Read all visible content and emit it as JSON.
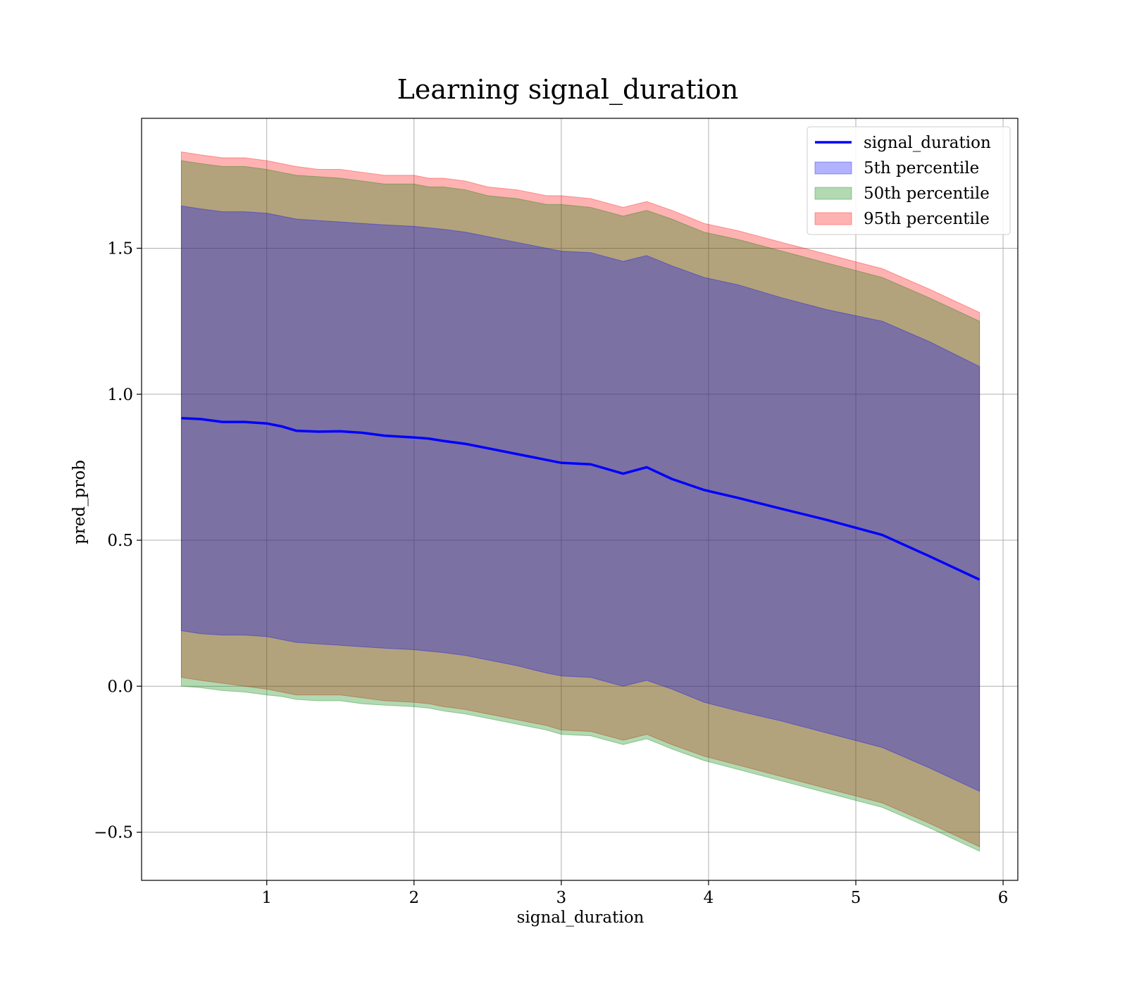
{
  "chart_data": {
    "type": "line",
    "title": "Learning signal_duration",
    "xlabel": "signal_duration",
    "ylabel": "pred_prob",
    "xlim": [
      0.15,
      6.1
    ],
    "ylim": [
      -0.665,
      1.945
    ],
    "xticks": [
      1,
      2,
      3,
      4,
      5,
      6
    ],
    "yticks": [
      -0.5,
      0.0,
      0.5,
      1.0,
      1.5
    ],
    "ytick_labels": [
      "−0.5",
      "0.0",
      "0.5",
      "1.0",
      "1.5"
    ],
    "grid": true,
    "legend_position": "top-right",
    "x": [
      0.42,
      0.55,
      0.7,
      0.85,
      1.0,
      1.1,
      1.2,
      1.35,
      1.5,
      1.65,
      1.8,
      2.0,
      2.1,
      2.2,
      2.35,
      2.5,
      2.7,
      2.9,
      3.0,
      3.2,
      3.42,
      3.58,
      3.75,
      3.97,
      4.2,
      4.5,
      4.8,
      5.18,
      5.5,
      5.84
    ],
    "line_series": {
      "name": "signal_duration",
      "color": "#0000ff",
      "values": [
        0.918,
        0.915,
        0.905,
        0.905,
        0.9,
        0.89,
        0.875,
        0.872,
        0.873,
        0.868,
        0.858,
        0.852,
        0.848,
        0.84,
        0.83,
        0.815,
        0.795,
        0.775,
        0.765,
        0.76,
        0.728,
        0.75,
        0.71,
        0.672,
        0.645,
        0.607,
        0.57,
        0.518,
        0.445,
        0.365
      ]
    },
    "bands": [
      {
        "name": "95th percentile",
        "color": "#ff0000",
        "alpha": 0.3,
        "upper": [
          1.83,
          1.82,
          1.81,
          1.81,
          1.8,
          1.79,
          1.78,
          1.77,
          1.77,
          1.76,
          1.75,
          1.75,
          1.74,
          1.74,
          1.73,
          1.71,
          1.7,
          1.68,
          1.68,
          1.67,
          1.64,
          1.66,
          1.63,
          1.585,
          1.56,
          1.52,
          1.48,
          1.43,
          1.36,
          1.28
        ],
        "lower": [
          0.03,
          0.02,
          0.01,
          0.0,
          -0.01,
          -0.02,
          -0.03,
          -0.03,
          -0.03,
          -0.04,
          -0.05,
          -0.055,
          -0.06,
          -0.07,
          -0.08,
          -0.095,
          -0.115,
          -0.135,
          -0.15,
          -0.155,
          -0.185,
          -0.165,
          -0.2,
          -0.24,
          -0.27,
          -0.31,
          -0.35,
          -0.4,
          -0.47,
          -0.55
        ]
      },
      {
        "name": "50th percentile",
        "color": "#008000",
        "alpha": 0.3,
        "upper": [
          1.8,
          1.79,
          1.78,
          1.78,
          1.77,
          1.76,
          1.75,
          1.745,
          1.74,
          1.73,
          1.72,
          1.72,
          1.71,
          1.71,
          1.7,
          1.68,
          1.67,
          1.65,
          1.65,
          1.64,
          1.61,
          1.63,
          1.6,
          1.555,
          1.53,
          1.49,
          1.45,
          1.4,
          1.33,
          1.25
        ],
        "lower": [
          0.0,
          -0.005,
          -0.015,
          -0.02,
          -0.03,
          -0.035,
          -0.045,
          -0.05,
          -0.05,
          -0.06,
          -0.065,
          -0.07,
          -0.075,
          -0.085,
          -0.095,
          -0.11,
          -0.13,
          -0.15,
          -0.165,
          -0.17,
          -0.2,
          -0.18,
          -0.215,
          -0.255,
          -0.285,
          -0.325,
          -0.365,
          -0.415,
          -0.485,
          -0.565
        ]
      },
      {
        "name": "5th percentile",
        "color": "#0000ff",
        "alpha": 0.3,
        "upper": [
          1.645,
          1.635,
          1.625,
          1.625,
          1.62,
          1.61,
          1.6,
          1.595,
          1.59,
          1.585,
          1.58,
          1.575,
          1.57,
          1.565,
          1.555,
          1.54,
          1.52,
          1.5,
          1.49,
          1.485,
          1.455,
          1.475,
          1.44,
          1.4,
          1.375,
          1.33,
          1.29,
          1.25,
          1.18,
          1.095
        ],
        "lower": [
          0.19,
          0.18,
          0.175,
          0.175,
          0.17,
          0.16,
          0.15,
          0.145,
          0.14,
          0.135,
          0.13,
          0.125,
          0.12,
          0.115,
          0.105,
          0.09,
          0.07,
          0.045,
          0.035,
          0.03,
          0.0,
          0.02,
          -0.01,
          -0.055,
          -0.085,
          -0.12,
          -0.16,
          -0.21,
          -0.28,
          -0.36
        ]
      }
    ],
    "legend": [
      {
        "label": "signal_duration",
        "kind": "line",
        "color": "#0000ff"
      },
      {
        "label": "5th percentile",
        "kind": "patch",
        "color": "#0000ff"
      },
      {
        "label": "50th percentile",
        "kind": "patch",
        "color": "#008000"
      },
      {
        "label": "95th percentile",
        "kind": "patch",
        "color": "#ff0000"
      }
    ]
  }
}
